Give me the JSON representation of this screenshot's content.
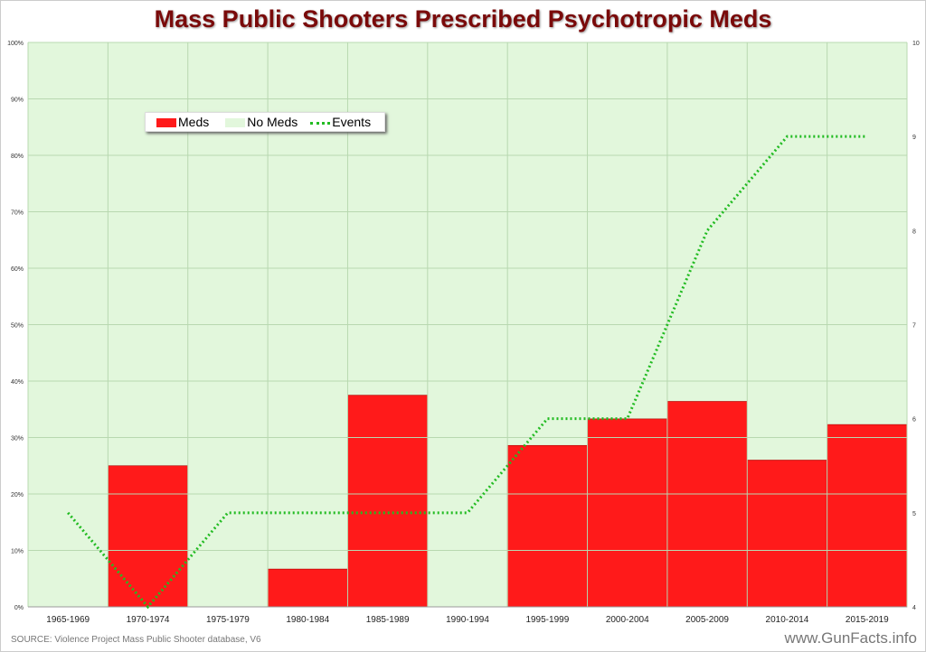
{
  "chart_data": {
    "type": "bar",
    "title": "Mass Public Shooters Prescribed Psychotropic Meds",
    "categories": [
      "1965-1969",
      "1970-1974",
      "1975-1979",
      "1980-1984",
      "1985-1989",
      "1990-1994",
      "1995-1999",
      "2000-2004",
      "2005-2009",
      "2010-2014",
      "2015-2019"
    ],
    "stacked": true,
    "series": [
      {
        "name": "Meds",
        "axis": "left",
        "color": "#ff1a1a",
        "values": [
          0,
          25,
          0,
          6.7,
          37.5,
          0,
          28.6,
          33.3,
          36.4,
          26,
          32.3
        ]
      },
      {
        "name": "No Meds",
        "axis": "left",
        "color": "#e2f7dc",
        "values": [
          100,
          75,
          100,
          93.3,
          62.5,
          100,
          71.4,
          66.7,
          63.6,
          74,
          67.7
        ]
      },
      {
        "name": "Events",
        "axis": "right",
        "type": "line",
        "style": "dotted",
        "color": "#22bb22",
        "values": [
          5,
          4,
          5,
          5,
          5,
          5,
          6,
          6,
          8,
          9,
          9
        ]
      }
    ],
    "left_axis": {
      "ylim": [
        0,
        100
      ],
      "ticks": [
        "0%",
        "10%",
        "20%",
        "30%",
        "40%",
        "50%",
        "60%",
        "70%",
        "80%",
        "90%",
        "100%"
      ]
    },
    "right_axis": {
      "ylim": [
        4,
        10
      ],
      "ticks": [
        "4",
        "5",
        "6",
        "7",
        "8",
        "9",
        "10"
      ]
    },
    "grid": true,
    "legend_placement": "top-left"
  },
  "source": "SOURCE: Violence Project Mass Public Shooter database, V6",
  "site": "www.GunFacts.info"
}
